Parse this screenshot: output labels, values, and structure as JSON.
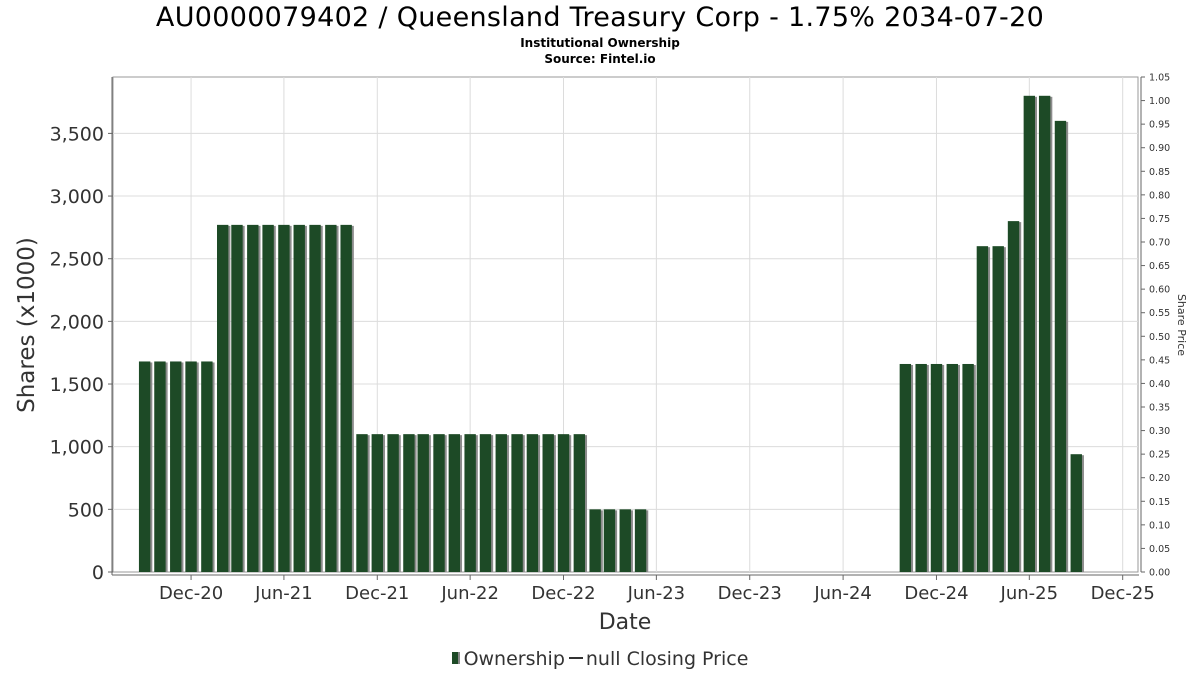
{
  "chart_data": {
    "type": "bar",
    "title": "AU0000079402 / Queensland Treasury Corp - 1.75% 2034-07-20",
    "subtitle": "Institutional Ownership",
    "source": "Source: Fintel.io",
    "xlabel": "Date",
    "ylabel": "Shares (x1000)",
    "y2label": "Share Price",
    "ylim": [
      0,
      3950
    ],
    "y2lim": [
      0,
      1.05
    ],
    "xlim": [
      "2020-07-01",
      "2025-12-31"
    ],
    "grid": true,
    "legend_position": "bottom",
    "legend": [
      "Ownership",
      "null Closing Price"
    ],
    "yticks": [
      0,
      500,
      1000,
      1500,
      2000,
      2500,
      3000,
      3500
    ],
    "ytick_labels": [
      "0",
      "500",
      "1,000",
      "1,500",
      "2,000",
      "2,500",
      "3,000",
      "3,500"
    ],
    "y2ticks": [
      "0.00",
      "0.05",
      "0.10",
      "0.15",
      "0.20",
      "0.25",
      "0.30",
      "0.35",
      "0.40",
      "0.45",
      "0.50",
      "0.55",
      "0.60",
      "0.65",
      "0.70",
      "0.75",
      "0.80",
      "0.85",
      "0.90",
      "0.95",
      "1.00",
      "1.05"
    ],
    "xticks": [
      {
        "date": "2020-12-01",
        "label": "Dec-20"
      },
      {
        "date": "2021-06-01",
        "label": "Jun-21"
      },
      {
        "date": "2021-12-01",
        "label": "Dec-21"
      },
      {
        "date": "2022-06-01",
        "label": "Jun-22"
      },
      {
        "date": "2022-12-01",
        "label": "Dec-22"
      },
      {
        "date": "2023-06-01",
        "label": "Jun-23"
      },
      {
        "date": "2023-12-01",
        "label": "Dec-23"
      },
      {
        "date": "2024-06-01",
        "label": "Jun-24"
      },
      {
        "date": "2024-12-01",
        "label": "Dec-24"
      },
      {
        "date": "2025-06-01",
        "label": "Jun-25"
      },
      {
        "date": "2025-12-01",
        "label": "Dec-25"
      }
    ],
    "series": [
      {
        "name": "Ownership",
        "color": "#1d4a26",
        "points": [
          {
            "x": "2020-09-01",
            "y": 1680
          },
          {
            "x": "2020-10-01",
            "y": 1680
          },
          {
            "x": "2020-11-01",
            "y": 1680
          },
          {
            "x": "2020-12-01",
            "y": 1680
          },
          {
            "x": "2021-01-01",
            "y": 1680
          },
          {
            "x": "2021-02-01",
            "y": 2770
          },
          {
            "x": "2021-03-01",
            "y": 2770
          },
          {
            "x": "2021-04-01",
            "y": 2770
          },
          {
            "x": "2021-05-01",
            "y": 2770
          },
          {
            "x": "2021-06-01",
            "y": 2770
          },
          {
            "x": "2021-07-01",
            "y": 2770
          },
          {
            "x": "2021-08-01",
            "y": 2770
          },
          {
            "x": "2021-09-01",
            "y": 2770
          },
          {
            "x": "2021-10-01",
            "y": 2770
          },
          {
            "x": "2021-11-01",
            "y": 1100
          },
          {
            "x": "2021-12-01",
            "y": 1100
          },
          {
            "x": "2022-01-01",
            "y": 1100
          },
          {
            "x": "2022-02-01",
            "y": 1100
          },
          {
            "x": "2022-03-01",
            "y": 1100
          },
          {
            "x": "2022-04-01",
            "y": 1100
          },
          {
            "x": "2022-05-01",
            "y": 1100
          },
          {
            "x": "2022-06-01",
            "y": 1100
          },
          {
            "x": "2022-07-01",
            "y": 1100
          },
          {
            "x": "2022-08-01",
            "y": 1100
          },
          {
            "x": "2022-09-01",
            "y": 1100
          },
          {
            "x": "2022-10-01",
            "y": 1100
          },
          {
            "x": "2022-11-01",
            "y": 1100
          },
          {
            "x": "2022-12-01",
            "y": 1100
          },
          {
            "x": "2023-01-01",
            "y": 1100
          },
          {
            "x": "2023-02-01",
            "y": 500
          },
          {
            "x": "2023-03-01",
            "y": 500
          },
          {
            "x": "2023-04-01",
            "y": 500
          },
          {
            "x": "2023-05-01",
            "y": 500
          },
          {
            "x": "2024-10-01",
            "y": 1660
          },
          {
            "x": "2024-11-01",
            "y": 1660
          },
          {
            "x": "2024-12-01",
            "y": 1660
          },
          {
            "x": "2025-01-01",
            "y": 1660
          },
          {
            "x": "2025-02-01",
            "y": 1660
          },
          {
            "x": "2025-03-01",
            "y": 2600
          },
          {
            "x": "2025-04-01",
            "y": 2600
          },
          {
            "x": "2025-05-01",
            "y": 2800
          },
          {
            "x": "2025-06-01",
            "y": 3800
          },
          {
            "x": "2025-07-01",
            "y": 3800
          },
          {
            "x": "2025-08-01",
            "y": 3600
          },
          {
            "x": "2025-09-01",
            "y": 940
          }
        ]
      },
      {
        "name": "null Closing Price",
        "color": "#333333",
        "points": []
      }
    ]
  }
}
